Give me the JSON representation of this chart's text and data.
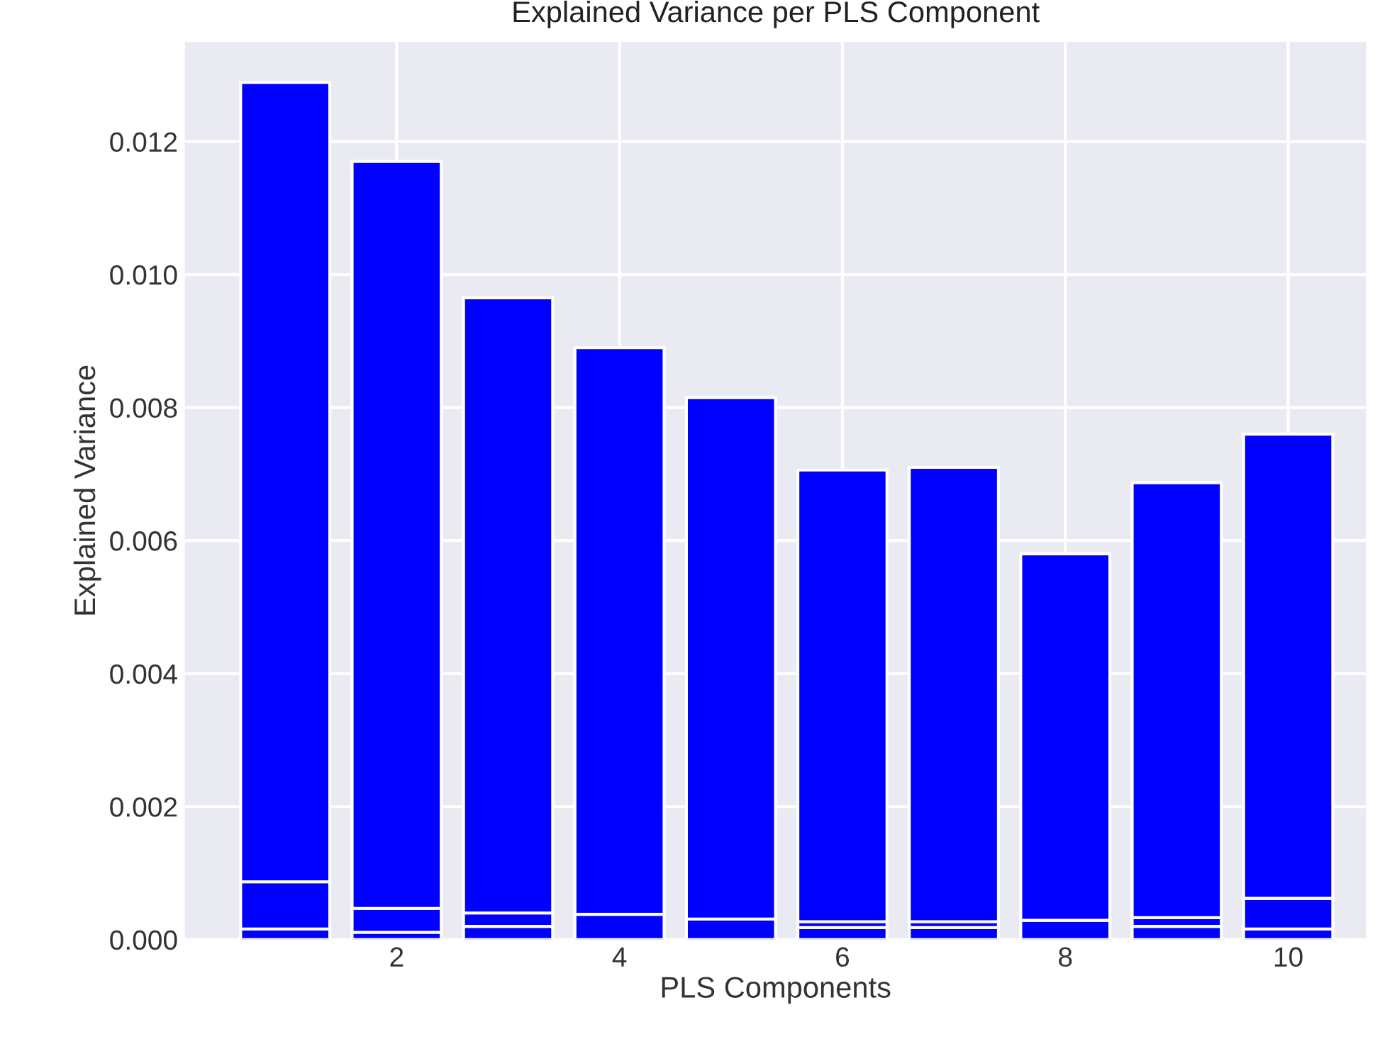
{
  "chart_data": {
    "type": "bar",
    "title": "Explained Variance per PLS Component",
    "xlabel": "PLS Components",
    "ylabel": "Explained Variance",
    "x": [
      1,
      2,
      3,
      4,
      5,
      6,
      7,
      8,
      9,
      10
    ],
    "stacked": true,
    "series": [
      {
        "color": "#0000ff",
        "values": [
          0.00016,
          0.00011,
          0.0002,
          0.00038,
          0.00031,
          0.00018,
          0.00018,
          0.00029,
          0.0002,
          0.00016
        ]
      },
      {
        "color": "#0000ff",
        "values": [
          0.00071,
          0.00036,
          0.0002,
          null,
          null,
          9e-05,
          9e-05,
          null,
          0.00013,
          0.00046
        ]
      },
      {
        "color": "#0000ff",
        "values": [
          0.01202,
          0.01123,
          0.00925,
          0.00852,
          0.00784,
          0.00679,
          0.00683,
          0.00551,
          0.00654,
          0.00698
        ]
      }
    ],
    "xlim": [
      0.1,
      10.7
    ],
    "xticks": [
      2,
      4,
      6,
      8,
      10
    ],
    "ylim": [
      0,
      0.0135
    ],
    "yticks": [
      {
        "value": 0,
        "label": "0.000"
      },
      {
        "value": 0.002,
        "label": "0.002"
      },
      {
        "value": 0.004,
        "label": "0.004"
      },
      {
        "value": 0.006,
        "label": "0.006"
      },
      {
        "value": 0.008,
        "label": "0.008"
      },
      {
        "value": 0.01,
        "label": "0.010"
      },
      {
        "value": 0.012,
        "label": "0.012"
      }
    ],
    "grid": true,
    "legend": false
  }
}
